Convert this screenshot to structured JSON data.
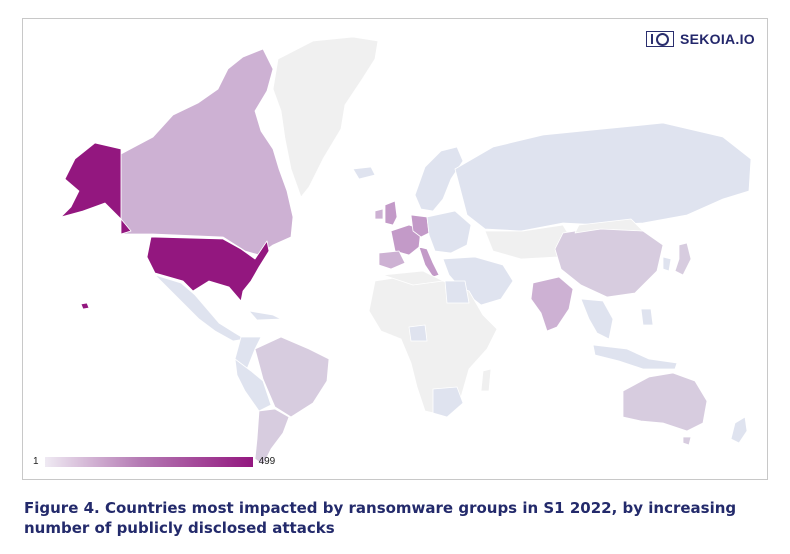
{
  "brand": {
    "name": "SEKOIA.IO"
  },
  "legend": {
    "min_label": "1",
    "max_label": "499",
    "colors": [
      "#efeaf3",
      "#b57bb4",
      "#93177f"
    ]
  },
  "caption": {
    "figure_label": "Figure 4.",
    "text": "Countries most impacted by ransomware groups in S1 2022, by increasing number of publicly disclosed attacks"
  },
  "colors": {
    "no_data": "#f0f0f0",
    "border": "#c9c9d4",
    "very_low": "#dfe3ef",
    "low": "#d7ccdf",
    "mid_low": "#cdb1d3",
    "medium": "#c39ac8",
    "high": "#93177f",
    "title": "#232a6b"
  },
  "regions": [
    {
      "name": "United States",
      "level": "high"
    },
    {
      "name": "Alaska",
      "level": "high"
    },
    {
      "name": "Canada",
      "level": "mid_low"
    },
    {
      "name": "Greenland",
      "level": "no_data"
    },
    {
      "name": "Mexico",
      "level": "very_low"
    },
    {
      "name": "Brazil",
      "level": "low"
    },
    {
      "name": "Argentina",
      "level": "low"
    },
    {
      "name": "Russia",
      "level": "very_low"
    },
    {
      "name": "China",
      "level": "low"
    },
    {
      "name": "India",
      "level": "mid_low"
    },
    {
      "name": "Australia",
      "level": "low"
    },
    {
      "name": "United Kingdom",
      "level": "medium"
    },
    {
      "name": "France",
      "level": "medium"
    },
    {
      "name": "Germany",
      "level": "medium"
    },
    {
      "name": "Italy",
      "level": "medium"
    },
    {
      "name": "Spain",
      "level": "mid_low"
    },
    {
      "name": "Africa",
      "level": "no_data"
    }
  ]
}
